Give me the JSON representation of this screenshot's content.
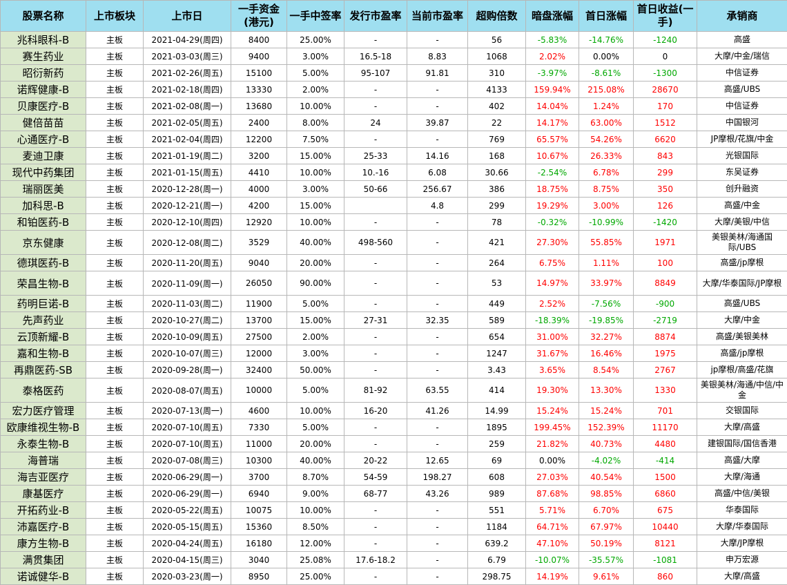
{
  "columns": [
    "股票名称",
    "上市板块",
    "上市日",
    "一手资金(港元)",
    "一手中签率",
    "发行市盈率",
    "当前市盈率",
    "超购倍数",
    "暗盘涨幅",
    "首日涨幅",
    "首日收益(一手)",
    "承销商"
  ],
  "colors": {
    "positive": "#ff0000",
    "negative": "#00a800",
    "header_bg": "#9fdff0",
    "name_bg": "#dbe9cc"
  },
  "rows": [
    [
      "兆科眼科-B",
      "主板",
      "2021-04-29(周四)",
      "8400",
      "25.00%",
      "-",
      "-",
      "56",
      "-5.83%",
      "-14.76%",
      "-1240",
      "高盛"
    ],
    [
      "赛生药业",
      "主板",
      "2021-03-03(周三)",
      "9400",
      "3.00%",
      "16.5-18",
      "8.83",
      "1068",
      "2.02%",
      "0.00%",
      "0",
      "大摩/中金/瑞信"
    ],
    [
      "昭衍新药",
      "主板",
      "2021-02-26(周五)",
      "15100",
      "5.00%",
      "95-107",
      "91.81",
      "310",
      "-3.97%",
      "-8.61%",
      "-1300",
      "中信证券"
    ],
    [
      "诺辉健康-B",
      "主板",
      "2021-02-18(周四)",
      "13330",
      "2.00%",
      "-",
      "-",
      "4133",
      "159.94%",
      "215.08%",
      "28670",
      "高盛/UBS"
    ],
    [
      "贝康医疗-B",
      "主板",
      "2021-02-08(周一)",
      "13680",
      "10.00%",
      "-",
      "-",
      "402",
      "14.04%",
      "1.24%",
      "170",
      "中信证券"
    ],
    [
      "健倍苗苗",
      "主板",
      "2021-02-05(周五)",
      "2400",
      "8.00%",
      "24",
      "39.87",
      "22",
      "14.17%",
      "63.00%",
      "1512",
      "中国银河"
    ],
    [
      "心通医疗-B",
      "主板",
      "2021-02-04(周四)",
      "12200",
      "7.50%",
      "-",
      "-",
      "769",
      "65.57%",
      "54.26%",
      "6620",
      "JP摩根/花旗/中金"
    ],
    [
      "麦迪卫康",
      "主板",
      "2021-01-19(周二)",
      "3200",
      "15.00%",
      "25-33",
      "14.16",
      "168",
      "10.67%",
      "26.33%",
      "843",
      "光银国际"
    ],
    [
      "现代中药集团",
      "主板",
      "2021-01-15(周五)",
      "4410",
      "10.00%",
      "10.-16",
      "6.08",
      "30.66",
      "-2.54%",
      "6.78%",
      "299",
      "东吴证券"
    ],
    [
      "瑞丽医美",
      "主板",
      "2020-12-28(周一)",
      "4000",
      "3.00%",
      "50-66",
      "256.67",
      "386",
      "18.75%",
      "8.75%",
      "350",
      "创升融资"
    ],
    [
      "加科思-B",
      "主板",
      "2020-12-21(周一)",
      "4200",
      "15.00%",
      "",
      "4.8",
      "299",
      "19.29%",
      "3.00%",
      "126",
      "高盛/中金"
    ],
    [
      "和铂医药-B",
      "主板",
      "2020-12-10(周四)",
      "12920",
      "10.00%",
      "-",
      "-",
      "78",
      "-0.32%",
      "-10.99%",
      "-1420",
      "大摩/美银/中信"
    ],
    [
      "京东健康",
      "主板",
      "2020-12-08(周二)",
      "3529",
      "40.00%",
      "498-560",
      "-",
      "421",
      "27.30%",
      "55.85%",
      "1971",
      "美银美林/海通国际/UBS"
    ],
    [
      "德琪医药-B",
      "主板",
      "2020-11-20(周五)",
      "9040",
      "20.00%",
      "-",
      "-",
      "264",
      "6.75%",
      "1.11%",
      "100",
      "高盛/jp摩根"
    ],
    [
      "荣昌生物-B",
      "主板",
      "2020-11-09(周一)",
      "26050",
      "90.00%",
      "-",
      "-",
      "53",
      "14.97%",
      "33.97%",
      "8849",
      "大摩/华泰国际/JP摩根"
    ],
    [
      "药明巨诺-B",
      "主板",
      "2020-11-03(周二)",
      "11900",
      "5.00%",
      "-",
      "-",
      "449",
      "2.52%",
      "-7.56%",
      "-900",
      "高盛/UBS"
    ],
    [
      "先声药业",
      "主板",
      "2020-10-27(周二)",
      "13700",
      "15.00%",
      "27-31",
      "32.35",
      "589",
      "-18.39%",
      "-19.85%",
      "-2719",
      "大摩/中金"
    ],
    [
      "云顶新耀-B",
      "主板",
      "2020-10-09(周五)",
      "27500",
      "2.00%",
      "-",
      "-",
      "654",
      "31.00%",
      "32.27%",
      "8874",
      "高盛/美银美林"
    ],
    [
      "嘉和生物-B",
      "主板",
      "2020-10-07(周三)",
      "12000",
      "3.00%",
      "-",
      "-",
      "1247",
      "31.67%",
      "16.46%",
      "1975",
      "高盛/jp摩根"
    ],
    [
      "再鼎医药-SB",
      "主板",
      "2020-09-28(周一)",
      "32400",
      "50.00%",
      "-",
      "-",
      "3.43",
      "3.65%",
      "8.54%",
      "2767",
      "jp摩根/高盛/花旗"
    ],
    [
      "泰格医药",
      "主板",
      "2020-08-07(周五)",
      "10000",
      "5.00%",
      "81-92",
      "63.55",
      "414",
      "19.30%",
      "13.30%",
      "1330",
      "美银美林/海通/中信/中金"
    ],
    [
      "宏力医疗管理",
      "主板",
      "2020-07-13(周一)",
      "4600",
      "10.00%",
      "16-20",
      "41.26",
      "14.99",
      "15.24%",
      "15.24%",
      "701",
      "交银国际"
    ],
    [
      "欧康维视生物-B",
      "主板",
      "2020-07-10(周五)",
      "7330",
      "5.00%",
      "-",
      "-",
      "1895",
      "199.45%",
      "152.39%",
      "11170",
      "大摩/高盛"
    ],
    [
      "永泰生物-B",
      "主板",
      "2020-07-10(周五)",
      "11000",
      "20.00%",
      "-",
      "-",
      "259",
      "21.82%",
      "40.73%",
      "4480",
      "建银国际/国信香港"
    ],
    [
      "海普瑞",
      "主板",
      "2020-07-08(周三)",
      "10300",
      "40.00%",
      "20-22",
      "12.65",
      "69",
      "0.00%",
      "-4.02%",
      "-414",
      "高盛/大摩"
    ],
    [
      "海吉亚医疗",
      "主板",
      "2020-06-29(周一)",
      "3700",
      "8.70%",
      "54-59",
      "198.27",
      "608",
      "27.03%",
      "40.54%",
      "1500",
      "大摩/海通"
    ],
    [
      "康基医疗",
      "主板",
      "2020-06-29(周一)",
      "6940",
      "9.00%",
      "68-77",
      "43.26",
      "989",
      "87.68%",
      "98.85%",
      "6860",
      "高盛/中信/美银"
    ],
    [
      "开拓药业-B",
      "主板",
      "2020-05-22(周五)",
      "10075",
      "10.00%",
      "-",
      "-",
      "551",
      "5.71%",
      "6.70%",
      "675",
      "华泰国际"
    ],
    [
      "沛嘉医疗-B",
      "主板",
      "2020-05-15(周五)",
      "15360",
      "8.50%",
      "-",
      "-",
      "1184",
      "64.71%",
      "67.97%",
      "10440",
      "大摩/华泰国际"
    ],
    [
      "康方生物-B",
      "主板",
      "2020-04-24(周五)",
      "16180",
      "12.00%",
      "-",
      "-",
      "639.2",
      "47.10%",
      "50.19%",
      "8121",
      "大摩/JP摩根"
    ],
    [
      "满贯集团",
      "主板",
      "2020-04-15(周三)",
      "3040",
      "25.08%",
      "17.6-18.2",
      "-",
      "6.79",
      "-10.07%",
      "-35.57%",
      "-1081",
      "申万宏源"
    ],
    [
      "诺诚健华-B",
      "主板",
      "2020-03-23(周一)",
      "8950",
      "25.00%",
      "-",
      "-",
      "298.75",
      "14.19%",
      "9.61%",
      "860",
      "大摩/高盛"
    ]
  ]
}
